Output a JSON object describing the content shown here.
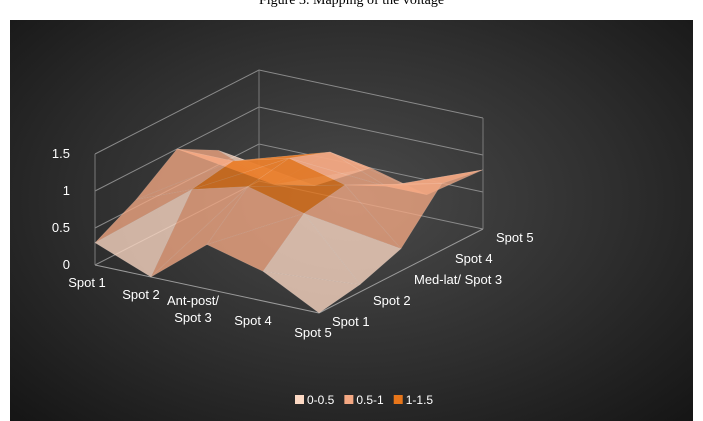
{
  "caption": "Figure 3. Mapping of the voltage",
  "chart_data": {
    "type": "surface",
    "zlim": [
      0,
      1.5
    ],
    "z_ticks": [
      "0",
      "0.5",
      "1",
      "1.5"
    ],
    "x_axis": {
      "title": "Ant-post/",
      "labels": [
        "Spot 1",
        "Spot 2",
        "Spot 3",
        "Spot 4",
        "Spot 5"
      ]
    },
    "y_axis": {
      "title": "Med-lat/",
      "labels": [
        "Spot 1",
        "Spot 2",
        "Spot 3",
        "Spot 4",
        "Spot 5"
      ]
    },
    "grid": true,
    "legend_position": "bottom",
    "legend": [
      {
        "label": "0-0.5",
        "color": "#fcd9c4"
      },
      {
        "label": "0.5-1",
        "color": "#f4a883"
      },
      {
        "label": "1-1.5",
        "color": "#e8761a"
      }
    ],
    "surface_z": [
      [
        0.3,
        0.6,
        1.0,
        0.7,
        0.2
      ],
      [
        0.0,
        0.9,
        1.0,
        0.4,
        0.1
      ],
      [
        0.6,
        1.1,
        1.2,
        1.0,
        0.5
      ],
      [
        0.4,
        0.9,
        1.0,
        0.7,
        0.3
      ],
      [
        0.0,
        0.1,
        0.3,
        0.9,
        0.8
      ]
    ]
  }
}
